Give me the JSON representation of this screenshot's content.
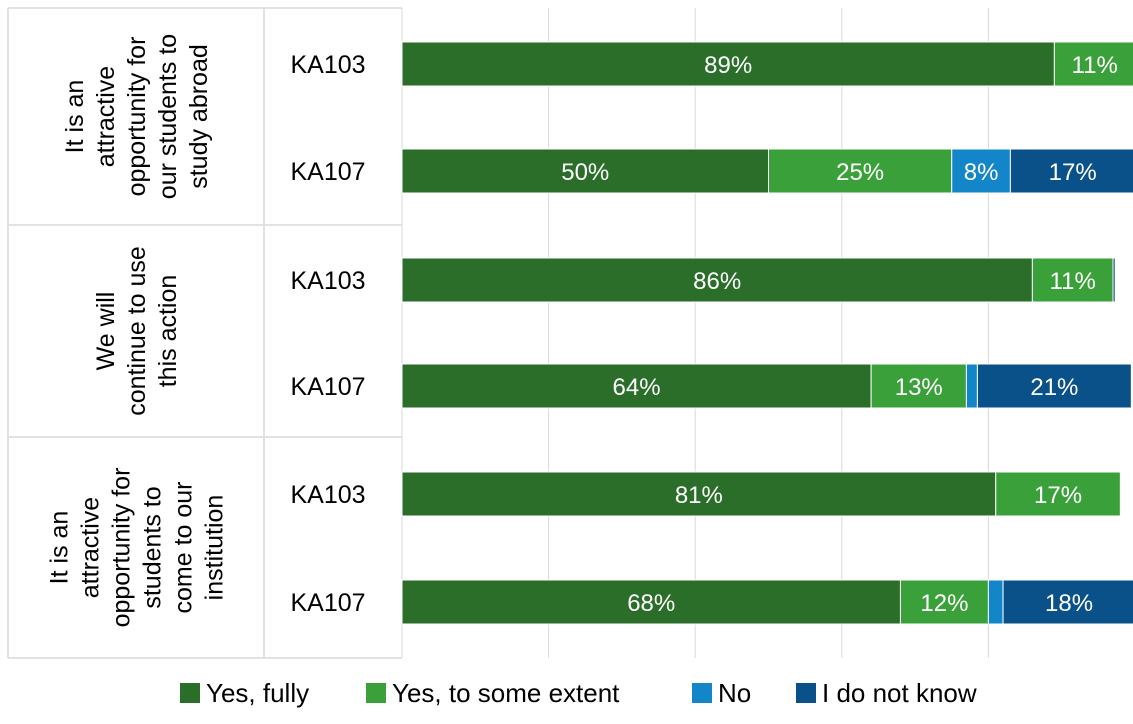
{
  "chart_data": {
    "type": "bar",
    "orientation": "horizontal",
    "stacked": true,
    "xlim": [
      0,
      100
    ],
    "grid": true,
    "legend_position": "bottom",
    "groups": [
      {
        "label_lines": [
          "It is an",
          "attractive",
          "opportunity for",
          "our students to",
          "study abroad"
        ],
        "rows": [
          {
            "label": "KA103",
            "values": [
              89,
              11,
              0,
              0
            ],
            "labels": [
              "89%",
              "11%",
              "",
              ""
            ]
          },
          {
            "label": "KA107",
            "values": [
              50,
              25,
              8,
              17
            ],
            "labels": [
              "50%",
              "25%",
              "8%",
              "17%"
            ]
          }
        ]
      },
      {
        "label_lines": [
          "We will",
          "continue to use",
          "this action"
        ],
        "rows": [
          {
            "label": "KA103",
            "values": [
              86,
              11,
              0,
              0.3
            ],
            "labels": [
              "86%",
              "11%",
              "",
              ""
            ]
          },
          {
            "label": "KA107",
            "values": [
              64,
              13,
              1.5,
              21
            ],
            "labels": [
              "64%",
              "13%",
              "",
              "21%"
            ]
          }
        ]
      },
      {
        "label_lines": [
          "It is an",
          "attractive",
          "opportunity for",
          "students to",
          "come to our",
          "institution"
        ],
        "rows": [
          {
            "label": "KA103",
            "values": [
              81,
              17,
              0,
              0
            ],
            "labels": [
              "81%",
              "17%",
              "",
              ""
            ]
          },
          {
            "label": "KA107",
            "values": [
              68,
              12,
              2,
              18
            ],
            "labels": [
              "68%",
              "12%",
              "",
              "18%"
            ]
          }
        ]
      }
    ],
    "series": [
      {
        "name": "Yes, fully",
        "color": "#2a6e29"
      },
      {
        "name": "Yes, to some extent",
        "color": "#3aa13a"
      },
      {
        "name": "No",
        "color": "#1385c9"
      },
      {
        "name": "I do not know",
        "color": "#0a5189"
      }
    ]
  },
  "colors": {
    "grid": "#d9d9d9",
    "divider": "#d9d9d9"
  }
}
